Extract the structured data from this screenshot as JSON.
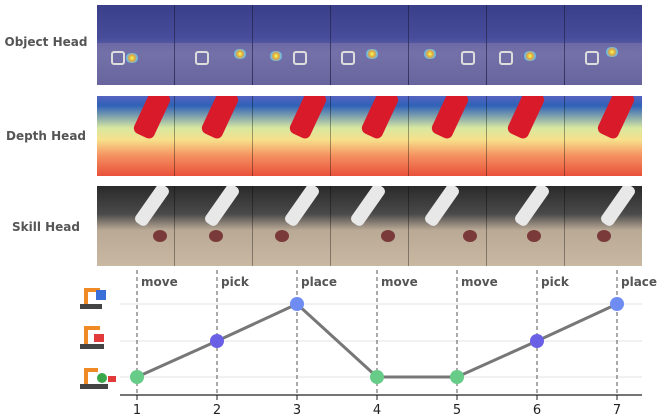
{
  "heads": [
    {
      "label": "Object Head"
    },
    {
      "label": "Depth Head"
    },
    {
      "label": "Skill Head"
    }
  ],
  "chart_data": {
    "type": "line",
    "x": [
      1,
      2,
      3,
      4,
      5,
      6,
      7
    ],
    "values": [
      1,
      2,
      3,
      1,
      1,
      2,
      3
    ],
    "stage_labels": [
      "move",
      "pick",
      "place",
      "move",
      "move",
      "pick",
      "place"
    ],
    "y_levels": [
      "move-icon",
      "pick-icon",
      "place-icon"
    ],
    "point_colors": {
      "move": "#66cc88",
      "pick": "#6a60e6",
      "place": "#6f8cf2"
    },
    "line_color": "#777777",
    "grid": true
  }
}
